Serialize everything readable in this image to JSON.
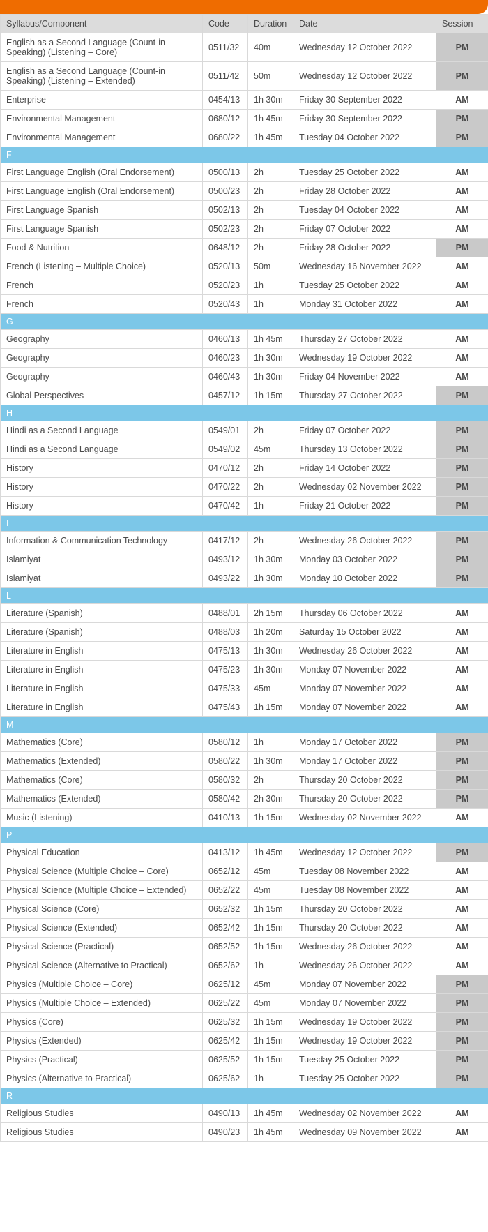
{
  "colors": {
    "top_bar": "#ef6c00",
    "header_bg": "#dcdcdc",
    "section_bg": "#7cc7e8",
    "section_text": "#ffffff",
    "border": "#d9d9d9",
    "pm_bg": "#c9c9c9",
    "text": "#4a4a4a"
  },
  "columns": {
    "syllabus": "Syllabus/Component",
    "code": "Code",
    "duration": "Duration",
    "date": "Date",
    "session": "Session"
  },
  "rows": [
    {
      "type": "data",
      "syllabus": "English as a Second Language (Count-in Speaking) (Listening – Core)",
      "code": "0511/32",
      "duration": "40m",
      "date": "Wednesday 12 October 2022",
      "session": "PM"
    },
    {
      "type": "data",
      "syllabus": "English as a Second Language (Count-in Speaking) (Listening – Extended)",
      "code": "0511/42",
      "duration": "50m",
      "date": "Wednesday 12 October 2022",
      "session": "PM"
    },
    {
      "type": "data",
      "syllabus": "Enterprise",
      "code": "0454/13",
      "duration": "1h 30m",
      "date": "Friday 30 September 2022",
      "session": "AM"
    },
    {
      "type": "data",
      "syllabus": "Environmental Management",
      "code": "0680/12",
      "duration": "1h 45m",
      "date": "Friday 30 September 2022",
      "session": "PM"
    },
    {
      "type": "data",
      "syllabus": "Environmental Management",
      "code": "0680/22",
      "duration": "1h 45m",
      "date": "Tuesday 04 October 2022",
      "session": "PM"
    },
    {
      "type": "section",
      "label": "F"
    },
    {
      "type": "data",
      "syllabus": "First Language English (Oral Endorsement)",
      "code": "0500/13",
      "duration": "2h",
      "date": "Tuesday 25 October 2022",
      "session": "AM"
    },
    {
      "type": "data",
      "syllabus": "First Language English (Oral Endorsement)",
      "code": "0500/23",
      "duration": "2h",
      "date": "Friday 28 October 2022",
      "session": "AM"
    },
    {
      "type": "data",
      "syllabus": "First Language Spanish",
      "code": "0502/13",
      "duration": "2h",
      "date": "Tuesday 04 October 2022",
      "session": "AM"
    },
    {
      "type": "data",
      "syllabus": "First Language Spanish",
      "code": "0502/23",
      "duration": "2h",
      "date": "Friday 07 October 2022",
      "session": "AM"
    },
    {
      "type": "data",
      "syllabus": "Food & Nutrition",
      "code": "0648/12",
      "duration": "2h",
      "date": "Friday 28 October 2022",
      "session": "PM"
    },
    {
      "type": "data",
      "syllabus": "French (Listening – Multiple Choice)",
      "code": "0520/13",
      "duration": " 50m",
      "date": "Wednesday 16 November 2022",
      "session": "AM"
    },
    {
      "type": "data",
      "syllabus": "French",
      "code": "0520/23",
      "duration": "1h",
      "date": "Tuesday 25 October 2022",
      "session": "AM"
    },
    {
      "type": "data",
      "syllabus": "French",
      "code": "0520/43",
      "duration": "1h",
      "date": "Monday 31 October 2022",
      "session": "AM"
    },
    {
      "type": "section",
      "label": "G"
    },
    {
      "type": "data",
      "syllabus": "Geography",
      "code": "0460/13",
      "duration": "1h 45m",
      "date": "Thursday 27 October 2022",
      "session": "AM"
    },
    {
      "type": "data",
      "syllabus": "Geography",
      "code": "0460/23",
      "duration": "1h 30m",
      "date": "Wednesday 19 October 2022",
      "session": "AM"
    },
    {
      "type": "data",
      "syllabus": "Geography",
      "code": "0460/43",
      "duration": "1h 30m",
      "date": "Friday 04 November 2022",
      "session": "AM"
    },
    {
      "type": "data",
      "syllabus": "Global Perspectives",
      "code": "0457/12",
      "duration": "1h 15m",
      "date": "Thursday 27 October 2022",
      "session": "PM"
    },
    {
      "type": "section",
      "label": "H"
    },
    {
      "type": "data",
      "syllabus": "Hindi as a Second Language",
      "code": "0549/01",
      "duration": "2h",
      "date": "Friday 07 October 2022",
      "session": "PM"
    },
    {
      "type": "data",
      "syllabus": "Hindi as a Second Language",
      "code": "0549/02",
      "duration": " 45m",
      "date": "Thursday 13 October 2022",
      "session": "PM"
    },
    {
      "type": "data",
      "syllabus": "History",
      "code": "0470/12",
      "duration": "2h",
      "date": "Friday 14 October 2022",
      "session": "PM"
    },
    {
      "type": "data",
      "syllabus": "History",
      "code": "0470/22",
      "duration": "2h",
      "date": "Wednesday 02 November 2022",
      "session": "PM"
    },
    {
      "type": "data",
      "syllabus": "History",
      "code": "0470/42",
      "duration": "1h",
      "date": "Friday 21 October 2022",
      "session": "PM"
    },
    {
      "type": "section",
      "label": "I"
    },
    {
      "type": "data",
      "syllabus": "Information & Communication Technology",
      "code": "0417/12",
      "duration": "2h",
      "date": "Wednesday 26 October 2022",
      "session": "PM"
    },
    {
      "type": "data",
      "syllabus": "Islamiyat",
      "code": "0493/12",
      "duration": "1h 30m",
      "date": "Monday 03 October 2022",
      "session": "PM"
    },
    {
      "type": "data",
      "syllabus": "Islamiyat",
      "code": "0493/22",
      "duration": "1h 30m",
      "date": "Monday 10 October 2022",
      "session": "PM"
    },
    {
      "type": "section",
      "label": "L"
    },
    {
      "type": "data",
      "syllabus": "Literature (Spanish)",
      "code": "0488/01",
      "duration": "2h 15m",
      "date": "Thursday 06 October 2022",
      "session": "AM"
    },
    {
      "type": "data",
      "syllabus": "Literature (Spanish)",
      "code": "0488/03",
      "duration": "1h 20m",
      "date": "Saturday 15 October 2022",
      "session": "AM"
    },
    {
      "type": "data",
      "syllabus": "Literature in English",
      "code": "0475/13",
      "duration": "1h 30m",
      "date": "Wednesday 26 October 2022",
      "session": "AM"
    },
    {
      "type": "data",
      "syllabus": "Literature in English",
      "code": "0475/23",
      "duration": "1h 30m",
      "date": "Monday 07 November 2022",
      "session": "AM"
    },
    {
      "type": "data",
      "syllabus": "Literature in English",
      "code": "0475/33",
      "duration": " 45m",
      "date": "Monday 07 November 2022",
      "session": "AM"
    },
    {
      "type": "data",
      "syllabus": "Literature in English",
      "code": "0475/43",
      "duration": "1h 15m",
      "date": "Monday 07 November 2022",
      "session": "AM"
    },
    {
      "type": "section",
      "label": "M"
    },
    {
      "type": "data",
      "syllabus": "Mathematics (Core)",
      "code": "0580/12",
      "duration": "1h",
      "date": "Monday 17 October 2022",
      "session": "PM"
    },
    {
      "type": "data",
      "syllabus": "Mathematics (Extended)",
      "code": "0580/22",
      "duration": "1h 30m",
      "date": "Monday 17 October 2022",
      "session": "PM"
    },
    {
      "type": "data",
      "syllabus": "Mathematics (Core)",
      "code": "0580/32",
      "duration": "2h",
      "date": "Thursday 20 October 2022",
      "session": "PM"
    },
    {
      "type": "data",
      "syllabus": "Mathematics (Extended)",
      "code": "0580/42",
      "duration": "2h 30m",
      "date": "Thursday 20 October 2022",
      "session": "PM"
    },
    {
      "type": "data",
      "syllabus": "Music (Listening)",
      "code": "0410/13",
      "duration": "1h 15m",
      "date": "Wednesday 02 November 2022",
      "session": "AM"
    },
    {
      "type": "section",
      "label": "P"
    },
    {
      "type": "data",
      "syllabus": "Physical Education",
      "code": "0413/12",
      "duration": "1h 45m",
      "date": "Wednesday 12 October 2022",
      "session": "PM"
    },
    {
      "type": "data",
      "syllabus": "Physical Science (Multiple Choice – Core)",
      "code": "0652/12",
      "duration": " 45m",
      "date": "Tuesday 08 November 2022",
      "session": "AM"
    },
    {
      "type": "data",
      "syllabus": "Physical Science (Multiple Choice – Extended)",
      "code": "0652/22",
      "duration": " 45m",
      "date": "Tuesday 08 November 2022",
      "session": "AM"
    },
    {
      "type": "data",
      "syllabus": "Physical Science (Core)",
      "code": "0652/32",
      "duration": "1h 15m",
      "date": "Thursday 20 October 2022",
      "session": "AM"
    },
    {
      "type": "data",
      "syllabus": "Physical Science (Extended)",
      "code": "0652/42",
      "duration": "1h 15m",
      "date": "Thursday 20 October 2022",
      "session": "AM"
    },
    {
      "type": "data",
      "syllabus": "Physical Science (Practical)",
      "code": "0652/52",
      "duration": "1h 15m",
      "date": "Wednesday 26 October 2022",
      "session": "AM"
    },
    {
      "type": "data",
      "syllabus": "Physical Science (Alternative to Practical)",
      "code": "0652/62",
      "duration": "1h",
      "date": "Wednesday 26 October 2022",
      "session": "AM"
    },
    {
      "type": "data",
      "syllabus": "Physics (Multiple Choice – Core)",
      "code": "0625/12",
      "duration": " 45m",
      "date": "Monday 07 November 2022",
      "session": "PM"
    },
    {
      "type": "data",
      "syllabus": "Physics (Multiple Choice – Extended)",
      "code": "0625/22",
      "duration": " 45m",
      "date": "Monday 07 November 2022",
      "session": "PM"
    },
    {
      "type": "data",
      "syllabus": "Physics (Core)",
      "code": "0625/32",
      "duration": "1h 15m",
      "date": "Wednesday 19 October 2022",
      "session": "PM"
    },
    {
      "type": "data",
      "syllabus": "Physics (Extended)",
      "code": "0625/42",
      "duration": "1h 15m",
      "date": "Wednesday 19 October 2022",
      "session": "PM"
    },
    {
      "type": "data",
      "syllabus": "Physics (Practical)",
      "code": "0625/52",
      "duration": "1h 15m",
      "date": "Tuesday 25 October 2022",
      "session": "PM"
    },
    {
      "type": "data",
      "syllabus": "Physics (Alternative to Practical)",
      "code": "0625/62",
      "duration": "1h",
      "date": "Tuesday 25 October 2022",
      "session": "PM"
    },
    {
      "type": "section",
      "label": "R"
    },
    {
      "type": "data",
      "syllabus": "Religious Studies",
      "code": "0490/13",
      "duration": "1h 45m",
      "date": "Wednesday 02 November 2022",
      "session": "AM"
    },
    {
      "type": "data",
      "syllabus": "Religious Studies",
      "code": "0490/23",
      "duration": "1h 45m",
      "date": "Wednesday 09 November 2022",
      "session": "AM"
    }
  ]
}
